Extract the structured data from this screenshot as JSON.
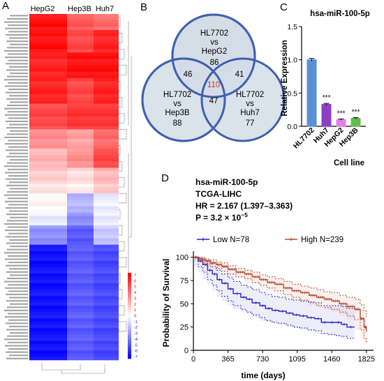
{
  "panels": {
    "a": {
      "letter": "A",
      "columns": [
        "HepG2",
        "Hep3B",
        "Huh7"
      ],
      "colorbar": {
        "ticks": [
          "7",
          "6",
          "5",
          "4",
          "3",
          "2",
          "1",
          "0",
          "-1",
          "-2",
          "-3",
          "-4",
          "-5",
          "-6",
          "-7"
        ],
        "colors": {
          "high": "#ff0000",
          "mid": "#ffffff",
          "low": "#0000ff"
        }
      },
      "heatmap": {
        "row_count": 108,
        "blocks": [
          {
            "rows": [
              0,
              5
            ],
            "values": [
              6.5,
              4.5,
              4.0
            ]
          },
          {
            "rows": [
              5,
              12
            ],
            "values": [
              6.5,
              5.0,
              6.0
            ]
          },
          {
            "rows": [
              12,
              20
            ],
            "values": [
              6.0,
              6.5,
              6.5
            ]
          },
          {
            "rows": [
              20,
              28
            ],
            "values": [
              6.0,
              5.0,
              6.0
            ]
          },
          {
            "rows": [
              28,
              36
            ],
            "values": [
              5.0,
              5.5,
              5.5
            ]
          },
          {
            "rows": [
              36,
              42
            ],
            "values": [
              3.0,
              2.5,
              4.0
            ]
          },
          {
            "rows": [
              42,
              48
            ],
            "values": [
              2.0,
              3.0,
              5.0
            ]
          },
          {
            "rows": [
              48,
              52
            ],
            "values": [
              1.5,
              1.0,
              2.0
            ]
          },
          {
            "rows": [
              52,
              56
            ],
            "values": [
              0.8,
              0.5,
              1.5
            ]
          },
          {
            "rows": [
              56,
              62
            ],
            "values": [
              0.2,
              -2.0,
              -0.5
            ]
          },
          {
            "rows": [
              62,
              66
            ],
            "values": [
              -0.5,
              -3.0,
              -0.5
            ]
          },
          {
            "rows": [
              66,
              72
            ],
            "values": [
              -3.0,
              -4.5,
              -1.5
            ]
          },
          {
            "rows": [
              72,
              108
            ],
            "values": [
              -6.5,
              -4.5,
              -5.0
            ]
          }
        ]
      }
    },
    "b": {
      "letter": "B",
      "circles": [
        {
          "lines": [
            "HL7702",
            "vs",
            "HepG2",
            "86"
          ]
        },
        {
          "lines": [
            "HL7702",
            "vs",
            "Hep3B",
            "88"
          ]
        },
        {
          "lines": [
            "HL7702",
            "vs",
            "Huh7",
            "77"
          ]
        }
      ],
      "overlaps": {
        "ab": "46",
        "ac": "41",
        "bc": "47",
        "abc": "110"
      },
      "colors": {
        "fill": "#d4dde6",
        "stroke": "#3f5fb0",
        "center": "#c0392b"
      }
    },
    "c": {
      "letter": "C",
      "chart_data": {
        "type": "bar",
        "title": "hsa-miR-100-5p",
        "xlabel": "Cell line",
        "ylabel": "Relative Expression",
        "categories": [
          "HL7702",
          "Huh7",
          "HepG2",
          "Hep3B"
        ],
        "values": [
          1.0,
          0.33,
          0.1,
          0.12
        ],
        "errors": [
          0.02,
          0.015,
          0.01,
          0.01
        ],
        "significance": [
          "",
          "***",
          "***",
          "***"
        ],
        "colors": [
          "#5b8fd6",
          "#8d3fc4",
          "#e680e6",
          "#5fbf4f"
        ],
        "ylim": [
          0,
          1.5
        ],
        "yticks": [
          "0.0",
          "0.5",
          "1.0",
          "1.5"
        ],
        "grid": false
      }
    },
    "d": {
      "letter": "D",
      "annotations": [
        "hsa-miR-100-5p",
        "TCGA-LIHC",
        "HR = 2.167 (1.397–3.363)",
        "P = 3.2 × 10"
      ],
      "p_exponent": "−5",
      "chart_data": {
        "type": "line",
        "title": "",
        "xlabel": "time (days)",
        "ylabel": "Probability of Survival",
        "xlim": [
          0,
          1900
        ],
        "ylim": [
          0,
          105
        ],
        "xticks": [
          "0",
          "365",
          "730",
          "1095",
          "1460",
          "1825"
        ],
        "yticks": [
          "0",
          "25",
          "50",
          "75",
          "100"
        ],
        "legend_position": "top",
        "series": [
          {
            "name": "Low N=78",
            "color": "#2323c8",
            "x": [
              0,
              50,
              100,
              150,
              200,
              250,
              300,
              365,
              420,
              500,
              560,
              620,
              700,
              760,
              830,
              900,
              980,
              1050,
              1120,
              1200,
              1280,
              1350,
              1420,
              1500,
              1560,
              1620,
              1700
            ],
            "y": [
              100,
              96,
              92,
              86,
              82,
              76,
              72,
              66,
              61,
              57,
              55,
              51,
              48,
              45,
              43,
              42,
              40,
              38,
              37,
              35,
              34,
              30,
              30,
              30,
              28,
              25,
              25
            ],
            "ci_upper": [
              100,
              99,
              97,
              93,
              90,
              86,
              82,
              78,
              74,
              70,
              68,
              65,
              62,
              60,
              58,
              57,
              55,
              54,
              53,
              52,
              51,
              48,
              48,
              48,
              47,
              45,
              45
            ],
            "ci_lower": [
              100,
              90,
              84,
              76,
              70,
              64,
              58,
              53,
              48,
              44,
              41,
              38,
              35,
              32,
              30,
              29,
              27,
              25,
              24,
              22,
              21,
              18,
              17,
              16,
              15,
              13,
              13
            ]
          },
          {
            "name": "High N=239",
            "color": "#b5492f",
            "x": [
              0,
              60,
              120,
              180,
              240,
              300,
              365,
              450,
              540,
              620,
              700,
              780,
              860,
              950,
              1040,
              1130,
              1220,
              1300,
              1380,
              1460,
              1540,
              1620,
              1700,
              1760,
              1800,
              1825
            ],
            "y": [
              100,
              98,
              96,
              94,
              92,
              90,
              87,
              84,
              82,
              79,
              76,
              73,
              71,
              67,
              64,
              62,
              59,
              57,
              55,
              53,
              50,
              47,
              44,
              34,
              25,
              20
            ],
            "ci_upper": [
              100,
              100,
              98,
              97,
              95,
              94,
              91,
              88,
              86,
              84,
              81,
              79,
              77,
              74,
              71,
              69,
              67,
              65,
              63,
              62,
              59,
              57,
              55,
              49,
              42,
              36
            ],
            "ci_lower": [
              100,
              95,
              93,
              90,
              88,
              85,
              82,
              79,
              77,
              73,
              70,
              67,
              64,
              60,
              57,
              54,
              51,
              48,
              46,
              44,
              41,
              37,
              33,
              22,
              13,
              8
            ]
          }
        ]
      }
    }
  }
}
